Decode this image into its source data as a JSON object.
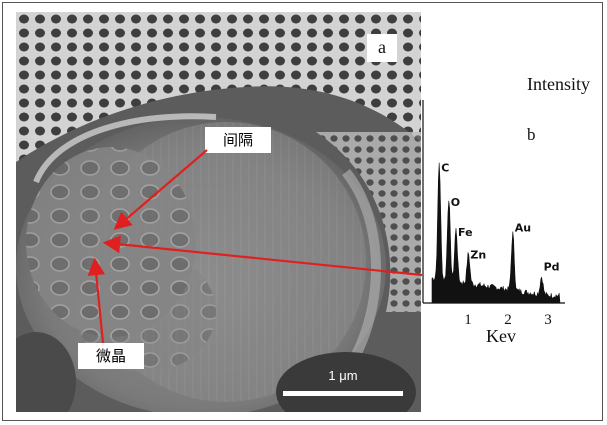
{
  "panel_a": {
    "label": "a"
  },
  "panel_b": {
    "label": "b"
  },
  "annotations": {
    "gap": "间隔",
    "microcrystal": "微晶"
  },
  "scale_bar": {
    "label": "1 μm"
  },
  "spectrum": {
    "y_axis_label": "Intensity",
    "x_axis_label": "Kev",
    "x_ticks": [
      "1",
      "2",
      "3"
    ],
    "peaks": [
      {
        "element": "C",
        "energy_kev": 0.28,
        "relative_height": 0.78
      },
      {
        "element": "O",
        "energy_kev": 0.52,
        "relative_height": 0.55
      },
      {
        "element": "Fe",
        "energy_kev": 0.7,
        "relative_height": 0.35
      },
      {
        "element": "Zn",
        "energy_kev": 1.01,
        "relative_height": 0.2
      },
      {
        "element": "Au",
        "energy_kev": 2.12,
        "relative_height": 0.38
      },
      {
        "element": "Pd",
        "energy_kev": 2.84,
        "relative_height": 0.12
      }
    ]
  },
  "colors": {
    "arrow": "#e02020",
    "scale_bar": "#ffffff"
  }
}
